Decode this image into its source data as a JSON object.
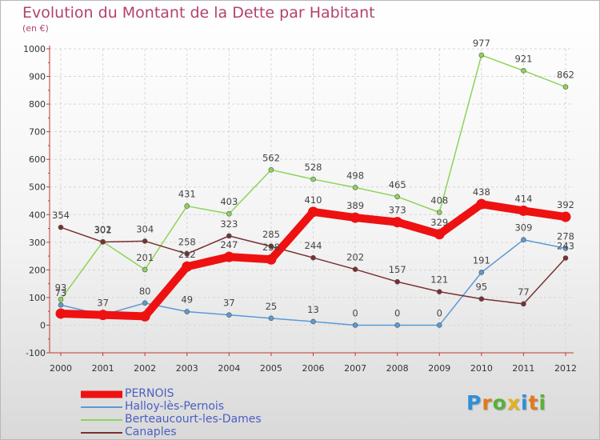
{
  "title": "Evolution du Montant de la Dette par Habitant",
  "subtitle": "(en €)",
  "logo": {
    "letters": [
      {
        "ch": "P",
        "color": "#2f8fd8"
      },
      {
        "ch": "r",
        "color": "#e07a1e"
      },
      {
        "ch": "o",
        "color": "#5ab03a"
      },
      {
        "ch": "x",
        "color": "#e4b21c"
      },
      {
        "ch": "i",
        "color": "#2f8fd8"
      },
      {
        "ch": "t",
        "color": "#e07a1e"
      },
      {
        "ch": "i",
        "color": "#5ab03a"
      }
    ]
  },
  "chart_data": {
    "type": "line",
    "title": "Evolution du Montant de la Dette par Habitant",
    "subtitle": "(en €)",
    "xlabel": "",
    "ylabel": "",
    "ylim": [
      -100,
      1000
    ],
    "yticks": [
      -100,
      0,
      100,
      200,
      300,
      400,
      500,
      600,
      700,
      800,
      900,
      1000
    ],
    "x": [
      "2000",
      "2001",
      "2002",
      "2003",
      "2004",
      "2005",
      "2006",
      "2007",
      "2008",
      "2009",
      "2010",
      "2011",
      "2012"
    ],
    "grid": true,
    "legend_position": "bottom-left",
    "series": [
      {
        "name": "PERNOIS",
        "color": "#ee1111",
        "thick": true,
        "values": [
          42,
          37,
          32,
          212,
          247,
          238,
          410,
          389,
          373,
          329,
          438,
          414,
          392
        ],
        "labels": [
          "",
          "",
          "",
          "212",
          "247",
          "238",
          "410",
          "389",
          "373",
          "329",
          "438",
          "414",
          "392"
        ]
      },
      {
        "name": "Halloy-lès-Pernois",
        "color": "#5b9ad5",
        "thick": false,
        "values": [
          73,
          37,
          80,
          49,
          37,
          25,
          13,
          0,
          0,
          0,
          191,
          309,
          278
        ],
        "labels": [
          "73",
          "37",
          "80",
          "49",
          "37",
          "25",
          "13",
          "0",
          "0",
          "0",
          "191",
          "309",
          "278"
        ]
      },
      {
        "name": "Berteaucourt-les-Dames",
        "color": "#8ed35a",
        "thick": false,
        "values": [
          93,
          302,
          201,
          431,
          403,
          562,
          528,
          498,
          465,
          408,
          977,
          921,
          862
        ],
        "labels": [
          "93",
          "302",
          "201",
          "431",
          "403",
          "562",
          "528",
          "498",
          "465",
          "408",
          "977",
          "921",
          "862"
        ]
      },
      {
        "name": "Canaples",
        "color": "#7a3030",
        "thick": false,
        "values": [
          354,
          301,
          304,
          258,
          323,
          285,
          244,
          202,
          157,
          121,
          95,
          77,
          243
        ],
        "labels": [
          "354",
          "301",
          "304",
          "258",
          "323",
          "285",
          "244",
          "202",
          "157",
          "121",
          "95",
          "77",
          "243"
        ]
      }
    ]
  }
}
